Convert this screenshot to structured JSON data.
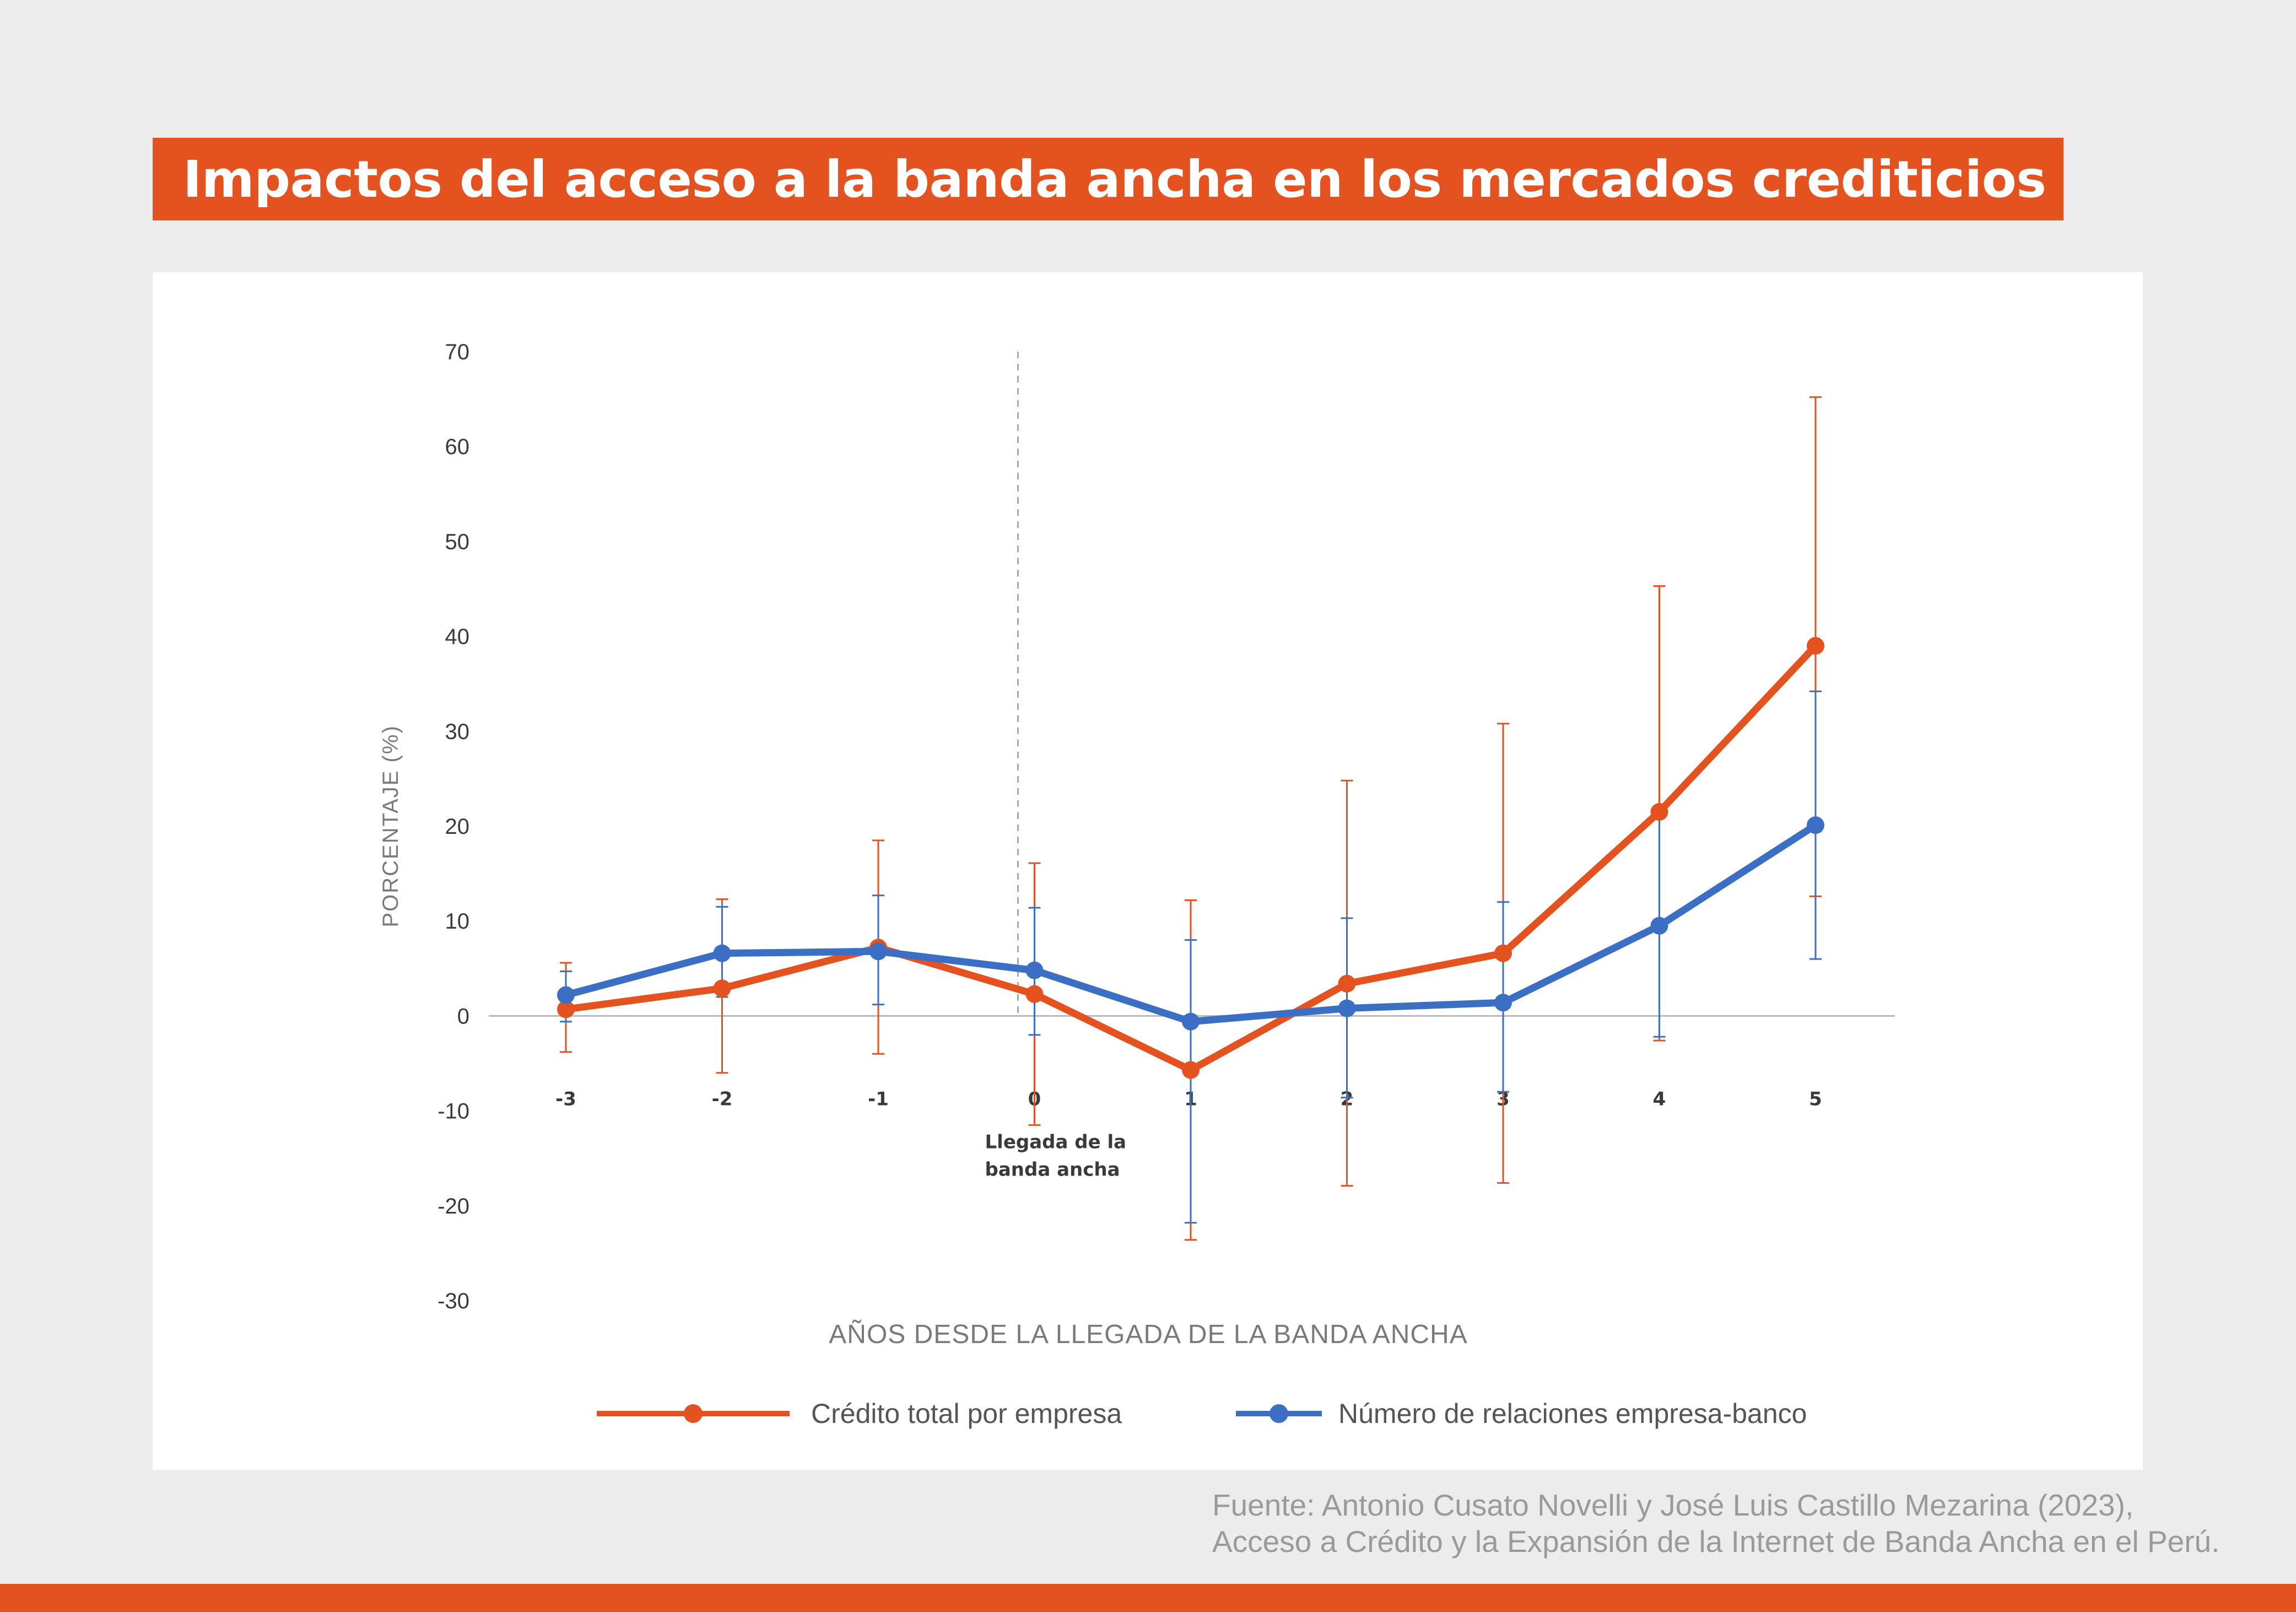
{
  "header": {
    "title": "Impactos del acceso a la banda ancha en los mercados crediticios"
  },
  "footer": {
    "source_line1": "Fuente: Antonio Cusato Novelli y José Luis Castillo Mezarina (2023),",
    "source_line2": "Acceso a Crédito y la Expansión de la Internet de Banda Ancha en el Perú."
  },
  "colors": {
    "accent": "#e4531f",
    "series_orange": "#e4531f",
    "series_blue": "#3a6fc4",
    "axis_text": "#3a3a3a",
    "label_gray": "#7a7a7a"
  },
  "chart_data": {
    "type": "line",
    "xlabel": "AÑOS DESDE LA LLEGADA DE LA BANDA ANCHA",
    "ylabel": "PORCENTAJE (%)",
    "x": [
      -3,
      -2,
      -1,
      0,
      1,
      2,
      3,
      4,
      5
    ],
    "x_tick_labels": [
      "-3",
      "-2",
      "-1",
      "0",
      "1",
      "2",
      "3",
      "4",
      "5"
    ],
    "ylim": [
      -30,
      70
    ],
    "y_ticks": [
      70,
      60,
      50,
      40,
      30,
      20,
      10,
      0,
      -10,
      -20,
      -30
    ],
    "y_tick_labels": [
      "70",
      "60",
      "50",
      "40",
      "30",
      "20",
      "10",
      "0",
      "-10",
      "-20",
      "-30"
    ],
    "grid": false,
    "zero_line": true,
    "annotation": {
      "x": 0,
      "line1": "Llegada de la",
      "line2": "banda ancha"
    },
    "legend_position": "bottom-center",
    "series": [
      {
        "name": "Crédito total por empresa",
        "color": "#e4531f",
        "values": [
          0.7,
          2.9,
          7.2,
          2.3,
          -5.7,
          3.4,
          6.6,
          21.5,
          39.0
        ],
        "err_low": [
          -3.8,
          -6.0,
          -4.0,
          -11.5,
          -23.6,
          -17.9,
          -17.6,
          -2.6,
          12.6
        ],
        "err_high": [
          5.6,
          12.3,
          18.5,
          16.1,
          12.2,
          24.8,
          30.8,
          45.3,
          65.2
        ]
      },
      {
        "name": "Número de relaciones empresa-banco",
        "color": "#3a6fc4",
        "values": [
          2.2,
          6.6,
          6.8,
          4.8,
          -0.6,
          0.8,
          1.4,
          9.5,
          20.1
        ],
        "err_low": [
          -0.6,
          2.0,
          1.2,
          -2.0,
          -21.8,
          -8.6,
          -8.0,
          -2.2,
          6.0
        ],
        "err_high": [
          4.7,
          11.5,
          12.7,
          11.4,
          8.0,
          10.3,
          12.0,
          21.3,
          34.2
        ]
      }
    ]
  }
}
